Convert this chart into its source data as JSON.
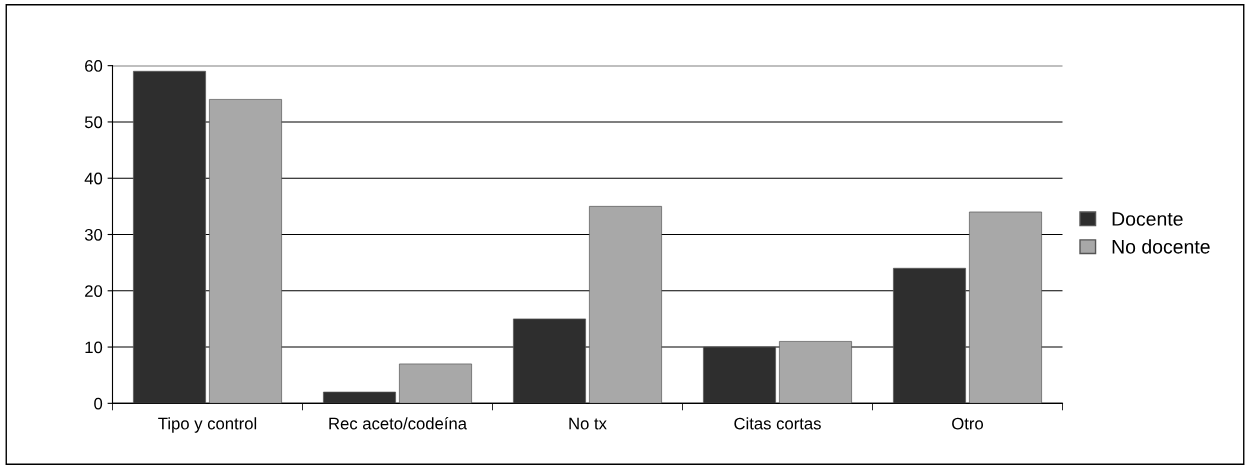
{
  "chart_data": {
    "type": "bar",
    "categories": [
      "Tipo y control",
      "Rec aceto/codeína",
      "No tx",
      "Citas cortas",
      "Otro"
    ],
    "series": [
      {
        "name": "Docente",
        "color": "#2e2e2e",
        "values": [
          59,
          2,
          15,
          10,
          24
        ]
      },
      {
        "name": "No docente",
        "color": "#a8a8a8",
        "values": [
          54,
          7,
          35,
          11,
          34
        ]
      }
    ],
    "ylim": [
      0,
      60
    ],
    "yticks": [
      0,
      10,
      20,
      30,
      40,
      50,
      60
    ],
    "grid": "y",
    "legend": "right"
  }
}
